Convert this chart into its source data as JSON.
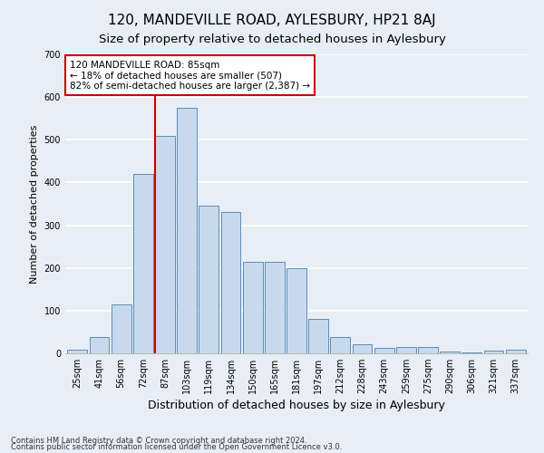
{
  "title": "120, MANDEVILLE ROAD, AYLESBURY, HP21 8AJ",
  "subtitle": "Size of property relative to detached houses in Aylesbury",
  "xlabel": "Distribution of detached houses by size in Aylesbury",
  "ylabel": "Number of detached properties",
  "categories": [
    "25sqm",
    "41sqm",
    "56sqm",
    "72sqm",
    "87sqm",
    "103sqm",
    "119sqm",
    "134sqm",
    "150sqm",
    "165sqm",
    "181sqm",
    "197sqm",
    "212sqm",
    "228sqm",
    "243sqm",
    "259sqm",
    "275sqm",
    "290sqm",
    "306sqm",
    "321sqm",
    "337sqm"
  ],
  "bar_heights": [
    8,
    38,
    115,
    420,
    510,
    575,
    345,
    330,
    215,
    215,
    200,
    80,
    38,
    22,
    12,
    15,
    15,
    4,
    2,
    6,
    8
  ],
  "bar_color": "#c9d9ed",
  "bar_edge_color": "#5b8db8",
  "vline_x_index": 4,
  "vline_color": "#cc0000",
  "annotation_text": "120 MANDEVILLE ROAD: 85sqm\n← 18% of detached houses are smaller (507)\n82% of semi-detached houses are larger (2,387) →",
  "annotation_box_color": "#ffffff",
  "annotation_box_edge": "#cc0000",
  "ylim": [
    0,
    700
  ],
  "yticks": [
    0,
    100,
    200,
    300,
    400,
    500,
    600,
    700
  ],
  "footer1": "Contains HM Land Registry data © Crown copyright and database right 2024.",
  "footer2": "Contains public sector information licensed under the Open Government Licence v3.0.",
  "bg_color": "#e8eef5",
  "plot_bg_color": "#e8eef5",
  "grid_color": "#ffffff",
  "title_fontsize": 11,
  "subtitle_fontsize": 9.5,
  "tick_fontsize": 7,
  "ylabel_fontsize": 8,
  "xlabel_fontsize": 9,
  "annotation_fontsize": 7.5,
  "footer_fontsize": 6
}
